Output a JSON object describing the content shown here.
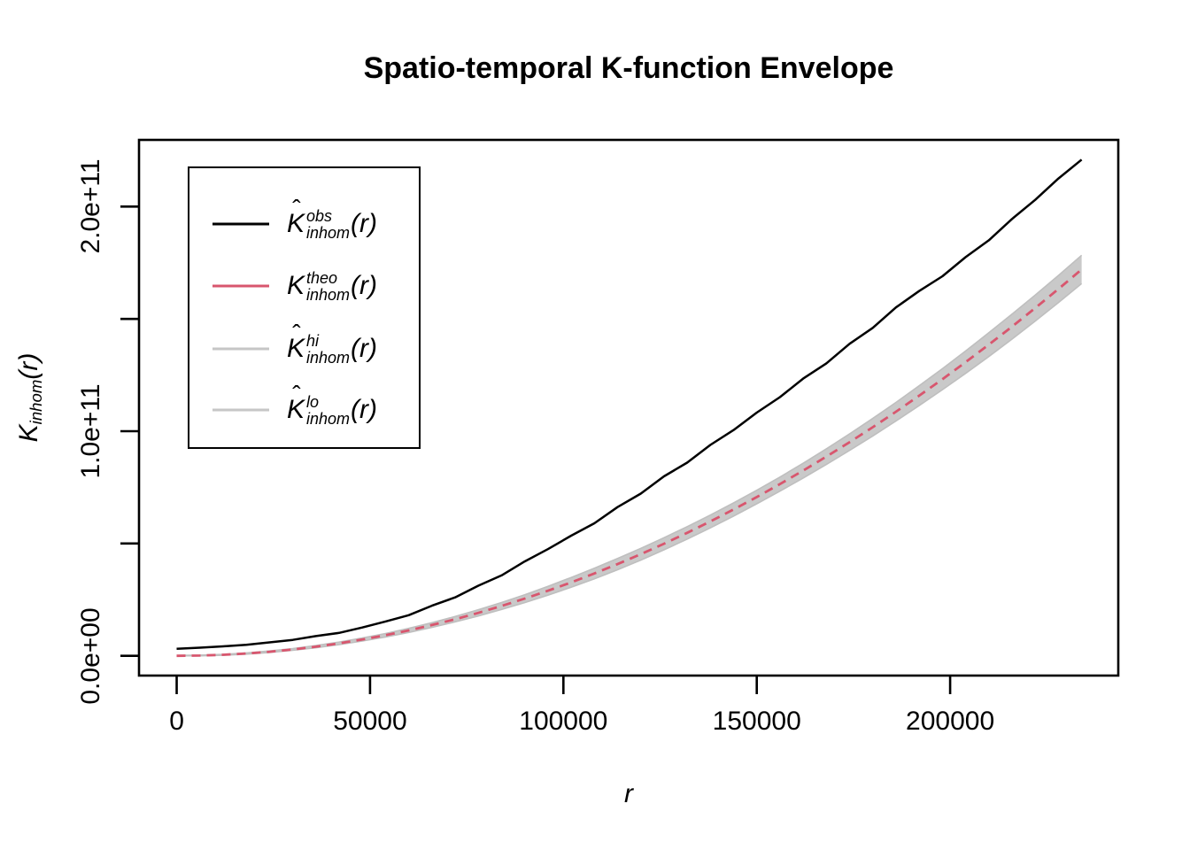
{
  "chart_data": {
    "type": "line",
    "title": "Spatio-temporal K-function Envelope",
    "xlabel": "r",
    "ylabel": "K_inhom(r)",
    "unit_note": "series values expressed in units of 1e9 (axis shows e+11)",
    "xlim": [
      -9740,
      243480
    ],
    "ylim_e9": [
      -8.8,
      229.7
    ],
    "grid": false,
    "x_ticks": [
      0,
      50000,
      100000,
      150000,
      200000
    ],
    "x_tick_labels": [
      "0",
      "50000",
      "100000",
      "150000",
      "200000"
    ],
    "y_ticks_e9": [
      0,
      50,
      100,
      150,
      200
    ],
    "y_tick_labels": [
      "0.0e+00",
      "",
      "1.0e+11",
      "",
      "2.0e+11"
    ],
    "r": [
      0,
      6000,
      12000,
      18000,
      24000,
      30000,
      36000,
      42000,
      48000,
      54000,
      60000,
      66000,
      72000,
      78000,
      84000,
      90000,
      96000,
      102000,
      108000,
      114000,
      120000,
      126000,
      132000,
      138000,
      144000,
      150000,
      156000,
      162000,
      168000,
      174000,
      180000,
      186000,
      192000,
      198000,
      204000,
      210000,
      216000,
      222000,
      228000,
      234000
    ],
    "series": [
      {
        "name": "obs",
        "style": "solid black line",
        "values_e9": [
          3.1,
          3.6,
          4.2,
          4.9,
          6.0,
          7.1,
          8.8,
          10.2,
          12.6,
          15.3,
          18.1,
          22.3,
          26.0,
          31.2,
          35.8,
          42.0,
          47.5,
          53.5,
          59.0,
          66.2,
          72.2,
          79.9,
          86.0,
          93.9,
          100.5,
          108.3,
          115.2,
          123.4,
          130.2,
          138.9,
          146.0,
          155.1,
          162.4,
          169.0,
          177.5,
          185.0,
          194.5,
          203.0,
          212.5,
          220.9
        ]
      },
      {
        "name": "theo",
        "style": "dashed rose line (pi*r^2)",
        "values_e9": [
          0,
          0.11,
          0.45,
          1.02,
          1.81,
          2.83,
          4.07,
          5.54,
          7.24,
          9.16,
          11.31,
          13.69,
          16.29,
          19.11,
          22.17,
          25.45,
          28.95,
          32.69,
          36.64,
          40.83,
          45.24,
          49.88,
          54.74,
          59.83,
          65.14,
          70.69,
          76.45,
          82.45,
          88.67,
          95.11,
          101.79,
          108.68,
          115.81,
          123.16,
          130.74,
          138.54,
          146.57,
          154.83,
          163.31,
          172.03
        ]
      },
      {
        "name": "hi",
        "style": "upper envelope, gray",
        "values_e9": [
          0.2,
          0.29,
          0.67,
          1.29,
          2.14,
          3.23,
          4.55,
          6.11,
          7.91,
          9.94,
          12.21,
          14.74,
          17.49,
          20.49,
          23.73,
          27.21,
          30.92,
          34.89,
          39.02,
          43.35,
          47.86,
          52.58,
          57.52,
          62.69,
          68.08,
          73.71,
          79.6,
          85.75,
          92.15,
          98.79,
          105.69,
          112.82,
          120.21,
          127.84,
          135.72,
          143.84,
          152.12,
          160.63,
          169.36,
          178.33
        ]
      },
      {
        "name": "lo",
        "style": "lower envelope, gray",
        "values_e9": [
          0,
          0,
          0.23,
          0.75,
          1.48,
          2.43,
          3.59,
          4.97,
          6.57,
          8.38,
          10.41,
          12.64,
          15.09,
          17.73,
          20.61,
          23.69,
          26.98,
          30.49,
          34.26,
          38.31,
          42.62,
          47.18,
          51.96,
          56.97,
          62.2,
          67.67,
          73.3,
          79.15,
          85.19,
          91.43,
          97.89,
          104.54,
          111.41,
          118.48,
          125.76,
          133.24,
          141.02,
          149.03,
          157.26,
          165.73
        ]
      }
    ],
    "legend_position": "top-left inside plot"
  },
  "colors": {
    "obs": "#000000",
    "theo": "#D8566E",
    "band_fill": "#C9C9C9",
    "band_edge": "#BFBFBF",
    "legend_gray": "#C6C6C6",
    "axis": "#000000"
  },
  "y_axis": {
    "main": "K",
    "sub": "inhom",
    "arg": "(r)"
  },
  "legend": {
    "items": [
      {
        "main": "K",
        "hat_glyph": "ˆ",
        "sup": "obs",
        "sub": "inhom",
        "arg": "(r)",
        "color": "#000000",
        "dasharray": "none"
      },
      {
        "main": "K",
        "hat_glyph": "",
        "sup": "theo",
        "sub": "inhom",
        "arg": "(r)",
        "color": "#D8566E",
        "dasharray": "10 7"
      },
      {
        "main": "K",
        "hat_glyph": "ˆ",
        "sup": "hi",
        "sub": "inhom",
        "arg": "(r)",
        "color": "#C6C6C6",
        "dasharray": "none"
      },
      {
        "main": "K",
        "hat_glyph": "ˆ",
        "sup": "lo",
        "sub": "inhom",
        "arg": "(r)",
        "color": "#C6C6C6",
        "dasharray": "none"
      }
    ]
  }
}
